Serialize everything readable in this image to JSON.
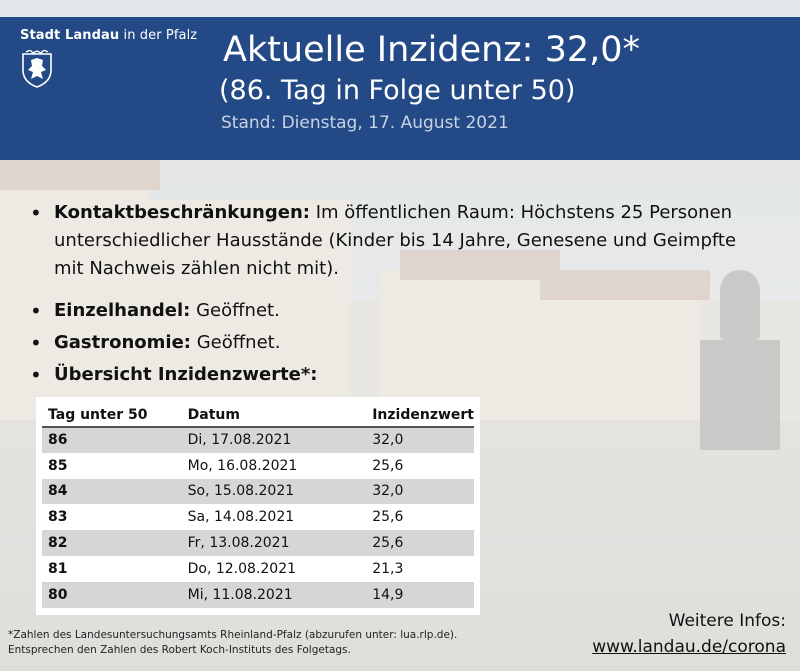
{
  "brand": {
    "name_bold": "Stadt Landau",
    "name_rest": " in der Pfalz"
  },
  "header": {
    "title": "Aktuelle Inzidenz: 32,0*",
    "subtitle": "(86. Tag in Folge unter 50)",
    "stand": "Stand: Dienstag, 17. August 2021",
    "background_color": "#234a86"
  },
  "bullets": [
    {
      "label": "Kontaktbeschränkungen:",
      "text": " Im öffentlichen Raum: Höchstens 25 Personen unterschiedlicher Hausstände (Kinder bis 14 Jahre, Genesene und Geimpfte mit Nachweis zählen nicht mit)."
    },
    {
      "label": "Einzelhandel:",
      "text": " Geöffnet."
    },
    {
      "label": "Gastronomie:",
      "text": " Geöffnet."
    },
    {
      "label": "Übersicht Inzidenzwerte*:",
      "text": ""
    }
  ],
  "table": {
    "headers": [
      "Tag unter 50",
      "Datum",
      "Inzidenzwert"
    ],
    "rows": [
      [
        "86",
        "Di, 17.08.2021",
        "32,0"
      ],
      [
        "85",
        "Mo, 16.08.2021",
        "25,6"
      ],
      [
        "84",
        "So, 15.08.2021",
        "32,0"
      ],
      [
        "83",
        "Sa, 14.08.2021",
        "25,6"
      ],
      [
        "82",
        "Fr, 13.08.2021",
        "25,6"
      ],
      [
        "81",
        "Do, 12.08.2021",
        "21,3"
      ],
      [
        "80",
        "Mi, 11.08.2021",
        "14,9"
      ]
    ]
  },
  "footnote": {
    "line1": "*Zahlen des Landesuntersuchungsamts Rheinland-Pfalz (abzurufen unter: lua.rlp.de).",
    "line2": "Entsprechen den Zahlen des Robert Koch-Instituts des Folgetags."
  },
  "more_info": {
    "label": "Weitere Infos:",
    "link": "www.landau.de/corona"
  },
  "icons": {
    "crest": "coat-of-arms-icon"
  }
}
